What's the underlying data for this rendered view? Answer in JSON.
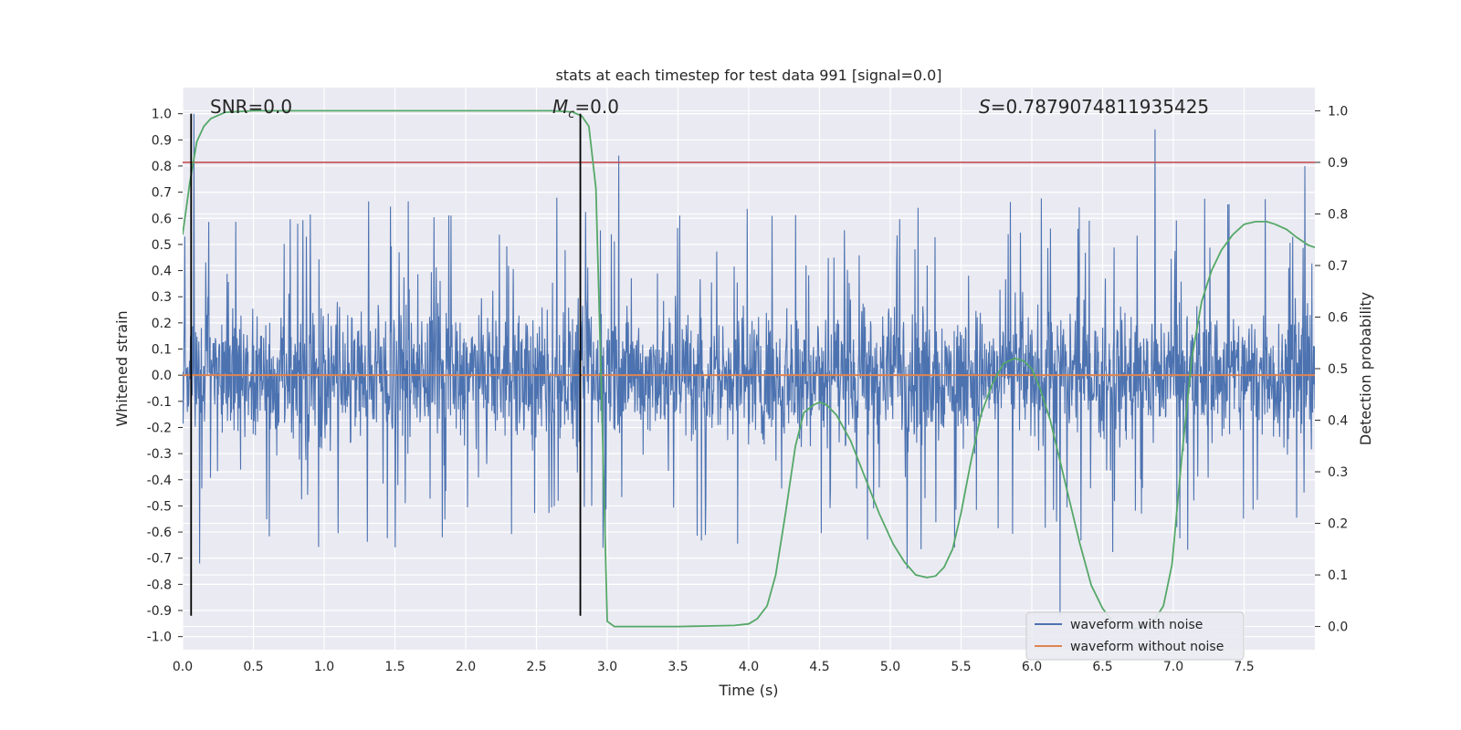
{
  "chart_data": {
    "type": "line",
    "title": "stats at each timestep for test data 991 [signal=0.0]",
    "xlabel": "Time (s)",
    "ylabel": "Whitened strain",
    "y2label": "Detection probability",
    "xlim": [
      0.0,
      8.0
    ],
    "ylim": [
      -1.05,
      1.1
    ],
    "y2lim": [
      -0.045,
      1.045
    ],
    "x_ticks": [
      "0.0",
      "0.5",
      "1.0",
      "1.5",
      "2.0",
      "2.5",
      "3.0",
      "3.5",
      "4.0",
      "4.5",
      "5.0",
      "5.5",
      "6.0",
      "6.5",
      "7.0",
      "7.5"
    ],
    "y_ticks": [
      "1.0",
      "0.9",
      "0.8",
      "0.7",
      "0.6",
      "0.5",
      "0.4",
      "0.3",
      "0.2",
      "0.1",
      "0.0",
      "-0.1",
      "-0.2",
      "-0.3",
      "-0.4",
      "-0.5",
      "-0.6",
      "-0.7",
      "-0.8",
      "-0.9",
      "-1.0"
    ],
    "y2_ticks": [
      "1.0",
      "0.9",
      "0.8",
      "0.7",
      "0.6",
      "0.5",
      "0.4",
      "0.3",
      "0.2",
      "0.1",
      "0.0"
    ],
    "grid": true,
    "legend_position": "lower-right",
    "annotations": {
      "snr": "SNR=0.0",
      "mc_symbol": "M",
      "mc_subscript": "c",
      "mc_value": "=0.0",
      "s_symbol": "S",
      "s_value": "=0.7879074811935425"
    },
    "vertical_markers_x": [
      0.06,
      2.81
    ],
    "vertical_markers_range": [
      -0.92,
      1.0
    ],
    "threshold": {
      "axis": "y2",
      "value": 0.9
    },
    "noise_envelope": {
      "median_upper": 0.35,
      "median_lower": -0.35,
      "min": -0.92,
      "max": 1.0
    },
    "series": [
      {
        "name": "waveform with noise",
        "color": "#4c72b0",
        "axis": "y",
        "notable_peaks": [
          [
            0.08,
            1.0
          ],
          [
            3.08,
            0.84
          ],
          [
            6.87,
            0.94
          ],
          [
            7.93,
            0.8
          ],
          [
            6.2,
            -0.92
          ],
          [
            5.12,
            -0.74
          ],
          [
            0.12,
            -0.72
          ]
        ]
      },
      {
        "name": "waveform without noise",
        "color": "#dd8452",
        "axis": "y",
        "x": [
          0.0,
          8.0
        ],
        "values": [
          0.0,
          0.0
        ]
      },
      {
        "color": "#55a868",
        "axis": "y2",
        "x": [
          0.0,
          0.05,
          0.1,
          0.15,
          0.2,
          0.3,
          0.5,
          1.0,
          2.0,
          2.6,
          2.75,
          2.82,
          2.87,
          2.92,
          2.96,
          3.0,
          3.05,
          3.1,
          3.5,
          3.9,
          4.0,
          4.06,
          4.13,
          4.19,
          4.26,
          4.33,
          4.39,
          4.46,
          4.5,
          4.55,
          4.62,
          4.72,
          4.82,
          4.92,
          5.02,
          5.1,
          5.18,
          5.26,
          5.32,
          5.38,
          5.44,
          5.5,
          5.57,
          5.64,
          5.72,
          5.8,
          5.88,
          5.94,
          6.0,
          6.06,
          6.13,
          6.2,
          6.27,
          6.34,
          6.42,
          6.5,
          6.57,
          6.64,
          6.72,
          6.8,
          6.86,
          6.93,
          6.99,
          7.06,
          7.13,
          7.2,
          7.27,
          7.34,
          7.42,
          7.5,
          7.58,
          7.66,
          7.72,
          7.8,
          7.87,
          7.95,
          8.0
        ],
        "values": [
          0.76,
          0.86,
          0.94,
          0.97,
          0.985,
          0.997,
          1.0,
          1.0,
          1.0,
          1.0,
          0.998,
          0.99,
          0.97,
          0.85,
          0.45,
          0.01,
          0.0,
          0.0,
          0.0,
          0.002,
          0.005,
          0.015,
          0.04,
          0.1,
          0.22,
          0.35,
          0.415,
          0.43,
          0.435,
          0.43,
          0.41,
          0.36,
          0.29,
          0.22,
          0.16,
          0.125,
          0.1,
          0.095,
          0.098,
          0.115,
          0.15,
          0.22,
          0.32,
          0.41,
          0.47,
          0.51,
          0.52,
          0.515,
          0.5,
          0.46,
          0.4,
          0.32,
          0.24,
          0.16,
          0.08,
          0.035,
          0.01,
          0.0,
          -0.005,
          0.0,
          0.01,
          0.04,
          0.12,
          0.33,
          0.52,
          0.63,
          0.69,
          0.73,
          0.76,
          0.78,
          0.785,
          0.785,
          0.78,
          0.77,
          0.755,
          0.74,
          0.735
        ]
      }
    ]
  }
}
